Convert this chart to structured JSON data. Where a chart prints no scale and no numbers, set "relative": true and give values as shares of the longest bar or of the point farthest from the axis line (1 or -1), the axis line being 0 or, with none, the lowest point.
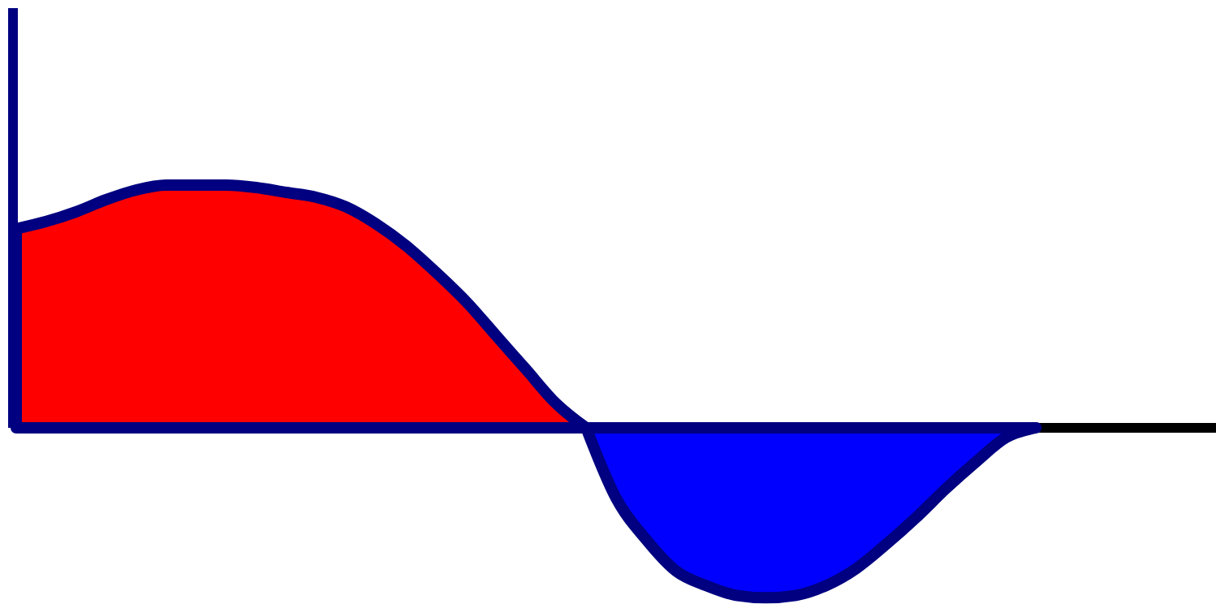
{
  "chart_data": {
    "type": "area",
    "relative": true,
    "categories": [
      null,
      null,
      null,
      null,
      null,
      null,
      null,
      null,
      null,
      null,
      null,
      null,
      null,
      null,
      null,
      null,
      null,
      null,
      null,
      null,
      null,
      null,
      null,
      null,
      null,
      null,
      null,
      null,
      null,
      null,
      null,
      null,
      null,
      null,
      null,
      null,
      null,
      null,
      null,
      null,
      null
    ],
    "series": [
      {
        "color": "#ff0000",
        "values": [
          0.82,
          0.85,
          0.89,
          0.94,
          0.98,
          1.0,
          1.0,
          1.0,
          0.99,
          0.97,
          0.95,
          0.91,
          0.84,
          0.75,
          0.64,
          0.52,
          0.38,
          0.24,
          0.1,
          0,
          null,
          null,
          null,
          null,
          null,
          null,
          null,
          null,
          null,
          null,
          null,
          null,
          null,
          null,
          null,
          null,
          null,
          null,
          null,
          null,
          null
        ]
      },
      {
        "color": "#0000ff",
        "values": [
          null,
          null,
          null,
          null,
          null,
          null,
          null,
          null,
          null,
          null,
          null,
          null,
          null,
          null,
          null,
          null,
          null,
          null,
          null,
          0,
          -0.29,
          -0.46,
          -0.59,
          -0.65,
          -0.69,
          -0.7,
          -0.69,
          -0.65,
          -0.58,
          -0.48,
          -0.37,
          -0.25,
          -0.14,
          -0.04,
          0,
          null,
          null,
          null,
          null,
          null,
          null
        ]
      }
    ]
  }
}
